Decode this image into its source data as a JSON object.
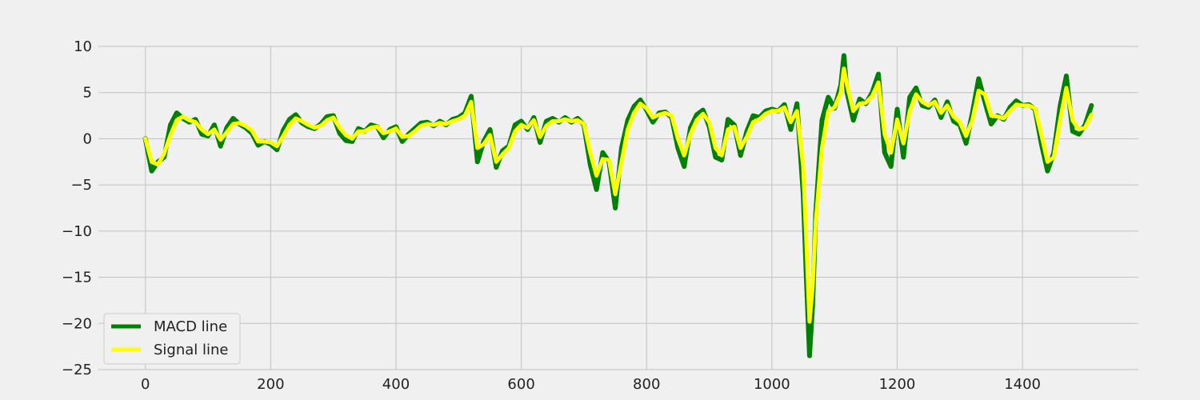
{
  "chart_data": {
    "type": "line",
    "title": "",
    "xlabel": "",
    "ylabel": "",
    "xlim": [
      -75,
      1585
    ],
    "ylim": [
      -25,
      10
    ],
    "x_ticks": [
      0,
      200,
      400,
      600,
      800,
      1000,
      1200,
      1400
    ],
    "y_ticks": [
      10,
      5,
      0,
      -5,
      -10,
      -15,
      -20,
      -25
    ],
    "x_tick_labels": [
      "0",
      "200",
      "400",
      "600",
      "800",
      "1000",
      "1200",
      "1400"
    ],
    "y_tick_labels": [
      "10",
      "5",
      "0",
      "−5",
      "−10",
      "−15",
      "−20",
      "−25"
    ],
    "grid": true,
    "legend_position": "lower-left",
    "background_color": "#f0f0f0",
    "grid_color": "#cbcbcb",
    "series": [
      {
        "name": "MACD line",
        "color": "#008000",
        "x": [
          0,
          10,
          20,
          30,
          40,
          50,
          60,
          70,
          80,
          90,
          100,
          110,
          120,
          130,
          140,
          150,
          160,
          170,
          180,
          190,
          200,
          210,
          220,
          230,
          240,
          250,
          260,
          270,
          280,
          290,
          300,
          310,
          320,
          330,
          340,
          350,
          360,
          370,
          380,
          390,
          400,
          410,
          420,
          430,
          440,
          450,
          460,
          470,
          480,
          490,
          500,
          510,
          520,
          530,
          540,
          550,
          560,
          570,
          580,
          590,
          600,
          610,
          620,
          630,
          640,
          650,
          660,
          670,
          680,
          690,
          700,
          710,
          720,
          730,
          740,
          750,
          760,
          770,
          780,
          790,
          800,
          810,
          820,
          830,
          840,
          850,
          860,
          870,
          880,
          890,
          900,
          910,
          920,
          930,
          940,
          950,
          960,
          970,
          980,
          990,
          1000,
          1010,
          1020,
          1030,
          1040,
          1050,
          1055,
          1060,
          1065,
          1070,
          1080,
          1090,
          1100,
          1110,
          1115,
          1120,
          1130,
          1140,
          1150,
          1160,
          1170,
          1180,
          1190,
          1200,
          1210,
          1220,
          1230,
          1240,
          1250,
          1260,
          1270,
          1280,
          1290,
          1300,
          1310,
          1320,
          1330,
          1340,
          1350,
          1360,
          1370,
          1380,
          1390,
          1400,
          1410,
          1420,
          1430,
          1440,
          1450,
          1460,
          1470,
          1480,
          1490,
          1500,
          1510
        ],
        "values": [
          0,
          -3.5,
          -2.5,
          -2,
          1.5,
          2.8,
          2.2,
          1.8,
          2.1,
          0.5,
          0.3,
          1.5,
          -0.8,
          1.2,
          2.2,
          1.6,
          1.2,
          0.6,
          -0.7,
          -0.3,
          -0.6,
          -1.2,
          0.9,
          2.1,
          2.6,
          1.7,
          1.3,
          1.1,
          1.6,
          2.4,
          2.5,
          0.6,
          -0.2,
          -0.3,
          1.1,
          0.8,
          1.5,
          1.3,
          0.1,
          1.0,
          1.3,
          -0.3,
          0.5,
          1.1,
          1.7,
          1.8,
          1.4,
          1.9,
          1.5,
          2.1,
          2.3,
          2.8,
          4.6,
          -2.5,
          -0.3,
          1.0,
          -3.1,
          -1.3,
          -0.8,
          1.5,
          1.9,
          1.0,
          2.3,
          -0.4,
          1.9,
          2.2,
          1.8,
          2.3,
          1.8,
          2.2,
          1.5,
          -2.8,
          -5.5,
          -1.5,
          -2.5,
          -7.5,
          -1.0,
          2.0,
          3.5,
          4.2,
          3.1,
          1.8,
          2.8,
          2.9,
          2.3,
          -1.0,
          -3.0,
          1.2,
          2.6,
          3.1,
          1.3,
          -2.0,
          -2.3,
          2.1,
          1.5,
          -1.8,
          0.8,
          2.5,
          2.3,
          3.0,
          3.2,
          3.0,
          3.7,
          1.0,
          3.8,
          -6,
          -15,
          -23.5,
          -18,
          -8,
          2,
          4.5,
          3.3,
          5.8,
          9.0,
          5.0,
          2.0,
          4.3,
          3.8,
          5.0,
          7.0,
          -1.5,
          -3.0,
          3.2,
          -2.0,
          4.5,
          5.5,
          3.6,
          3.4,
          4.2,
          2.3,
          4.0,
          1.9,
          1.5,
          -0.5,
          2.8,
          6.5,
          4.0,
          1.6,
          2.5,
          2.1,
          3.4,
          4.1,
          3.6,
          3.7,
          3.2,
          -0.5,
          -3.5,
          -1.5,
          3.5,
          6.8,
          0.8,
          0.5,
          1.5,
          3.6
        ]
      },
      {
        "name": "Signal line",
        "color": "#ffff00",
        "x": [
          0,
          10,
          20,
          30,
          40,
          50,
          60,
          70,
          80,
          90,
          100,
          110,
          120,
          130,
          140,
          150,
          160,
          170,
          180,
          190,
          200,
          210,
          220,
          230,
          240,
          250,
          260,
          270,
          280,
          290,
          300,
          310,
          320,
          330,
          340,
          350,
          360,
          370,
          380,
          390,
          400,
          410,
          420,
          430,
          440,
          450,
          460,
          470,
          480,
          490,
          500,
          510,
          520,
          530,
          540,
          550,
          560,
          570,
          580,
          590,
          600,
          610,
          620,
          630,
          640,
          650,
          660,
          670,
          680,
          690,
          700,
          710,
          720,
          730,
          740,
          750,
          760,
          770,
          780,
          790,
          800,
          810,
          820,
          830,
          840,
          850,
          860,
          870,
          880,
          890,
          900,
          910,
          920,
          930,
          940,
          950,
          960,
          970,
          980,
          990,
          1000,
          1010,
          1020,
          1030,
          1040,
          1050,
          1055,
          1060,
          1065,
          1070,
          1080,
          1090,
          1100,
          1110,
          1115,
          1120,
          1130,
          1140,
          1150,
          1160,
          1170,
          1180,
          1190,
          1200,
          1210,
          1220,
          1230,
          1240,
          1250,
          1260,
          1270,
          1280,
          1290,
          1300,
          1310,
          1320,
          1330,
          1340,
          1350,
          1360,
          1370,
          1380,
          1390,
          1400,
          1410,
          1420,
          1430,
          1440,
          1450,
          1460,
          1470,
          1480,
          1490,
          1500,
          1510
        ],
        "values": [
          0,
          -2.5,
          -2.8,
          -1.6,
          0.4,
          2.0,
          2.4,
          2.0,
          1.8,
          1.0,
          0.5,
          1.0,
          -0.1,
          0.7,
          1.6,
          1.7,
          1.4,
          0.9,
          -0.3,
          -0.3,
          -0.4,
          -0.8,
          0.3,
          1.5,
          2.2,
          1.9,
          1.5,
          1.2,
          1.4,
          2.0,
          2.3,
          1.2,
          0.4,
          0.0,
          0.8,
          0.8,
          1.2,
          1.3,
          0.6,
          0.8,
          1.1,
          0.2,
          0.3,
          0.8,
          1.4,
          1.6,
          1.5,
          1.7,
          1.6,
          1.9,
          2.1,
          2.5,
          4.0,
          -1.0,
          -0.6,
          0.4,
          -2.5,
          -1.7,
          -1.0,
          0.8,
          1.5,
          1.2,
          2.0,
          0.2,
          1.4,
          1.9,
          1.9,
          2.1,
          1.9,
          2.0,
          1.6,
          -1.5,
          -4.0,
          -2.2,
          -2.3,
          -6.0,
          -2.5,
          1.0,
          2.8,
          3.8,
          3.3,
          2.3,
          2.6,
          2.8,
          2.5,
          0.0,
          -1.8,
          0.5,
          2.0,
          2.7,
          1.8,
          -1.0,
          -1.8,
          1.0,
          1.3,
          -1.0,
          0.2,
          1.8,
          2.1,
          2.7,
          3.0,
          3.0,
          3.4,
          1.8,
          3.0,
          -3.0,
          -11.0,
          -19.8,
          -16.0,
          -9.0,
          -1.0,
          3.0,
          3.4,
          5.0,
          7.6,
          5.8,
          3.0,
          3.8,
          3.9,
          4.6,
          6.1,
          0.5,
          -1.5,
          2.1,
          -0.5,
          3.0,
          4.8,
          4.0,
          3.6,
          4.0,
          2.8,
          3.6,
          2.4,
          1.8,
          0.3,
          2.0,
          5.2,
          4.8,
          2.5,
          2.4,
          2.2,
          3.0,
          3.7,
          3.6,
          3.6,
          3.3,
          0.5,
          -2.5,
          -2.0,
          2.0,
          5.5,
          2.0,
          1.0,
          1.2,
          2.6
        ]
      }
    ]
  }
}
